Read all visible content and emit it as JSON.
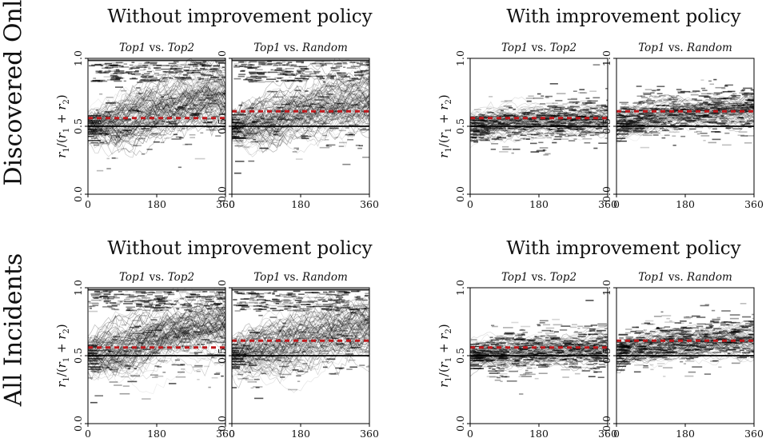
{
  "row_labels": [
    "Discovered Only",
    "All Incidents"
  ],
  "group_titles": [
    "Without improvement policy",
    "With improvement policy"
  ],
  "panel_titles": [
    {
      "left": "Top1",
      "vs": " vs. ",
      "right": "Top2"
    },
    {
      "left": "Top1",
      "vs": " vs. ",
      "right": "Random"
    }
  ],
  "ylabel": "r1/(r1 + r2)",
  "ylabel_parts": {
    "r": "r",
    "s1": "1",
    "slash": "/(",
    "s2": "1",
    "plus": " + ",
    "s3": "2",
    "close": ")"
  },
  "xticks": [
    "0",
    "180",
    "360"
  ],
  "yticks": [
    "0.0",
    "0.5",
    "1.0"
  ],
  "colors": {
    "dashed_line": "#c0181c",
    "solid_line": "#000000",
    "heat": "#000000"
  },
  "chart_data": [
    {
      "type": "heatmap",
      "row": "Discovered Only",
      "group": "Without improvement policy",
      "title": "Top1 vs. Top2",
      "xlim": [
        0,
        360
      ],
      "ylim": [
        0,
        1
      ],
      "dashed_y": 0.56,
      "solid_y": 0.5,
      "concentration_end": 0.88
    },
    {
      "type": "heatmap",
      "row": "Discovered Only",
      "group": "Without improvement policy",
      "title": "Top1 vs. Random",
      "xlim": [
        0,
        360
      ],
      "ylim": [
        0,
        1
      ],
      "dashed_y": 0.61,
      "solid_y": 0.5,
      "concentration_end": 0.85
    },
    {
      "type": "heatmap",
      "row": "Discovered Only",
      "group": "With improvement policy",
      "title": "Top1 vs. Top2",
      "xlim": [
        0,
        360
      ],
      "ylim": [
        0,
        1
      ],
      "dashed_y": 0.56,
      "solid_y": 0.5,
      "concentration_end": 0.55
    },
    {
      "type": "heatmap",
      "row": "Discovered Only",
      "group": "With improvement policy",
      "title": "Top1 vs. Random",
      "xlim": [
        0,
        360
      ],
      "ylim": [
        0,
        1
      ],
      "dashed_y": 0.61,
      "solid_y": 0.5,
      "concentration_end": 0.62
    },
    {
      "type": "heatmap",
      "row": "All Incidents",
      "group": "Without improvement policy",
      "title": "Top1 vs. Top2",
      "xlim": [
        0,
        360
      ],
      "ylim": [
        0,
        1
      ],
      "dashed_y": 0.56,
      "solid_y": 0.5,
      "concentration_end": 0.9
    },
    {
      "type": "heatmap",
      "row": "All Incidents",
      "group": "Without improvement policy",
      "title": "Top1 vs. Random",
      "xlim": [
        0,
        360
      ],
      "ylim": [
        0,
        1
      ],
      "dashed_y": 0.61,
      "solid_y": 0.5,
      "concentration_end": 0.88
    },
    {
      "type": "heatmap",
      "row": "All Incidents",
      "group": "With improvement policy",
      "title": "Top1 vs. Top2",
      "xlim": [
        0,
        360
      ],
      "ylim": [
        0,
        1
      ],
      "dashed_y": 0.56,
      "solid_y": 0.5,
      "concentration_end": 0.55
    },
    {
      "type": "heatmap",
      "row": "All Incidents",
      "group": "With improvement policy",
      "title": "Top1 vs. Random",
      "xlim": [
        0,
        360
      ],
      "ylim": [
        0,
        1
      ],
      "dashed_y": 0.61,
      "solid_y": 0.5,
      "concentration_end": 0.62
    }
  ]
}
